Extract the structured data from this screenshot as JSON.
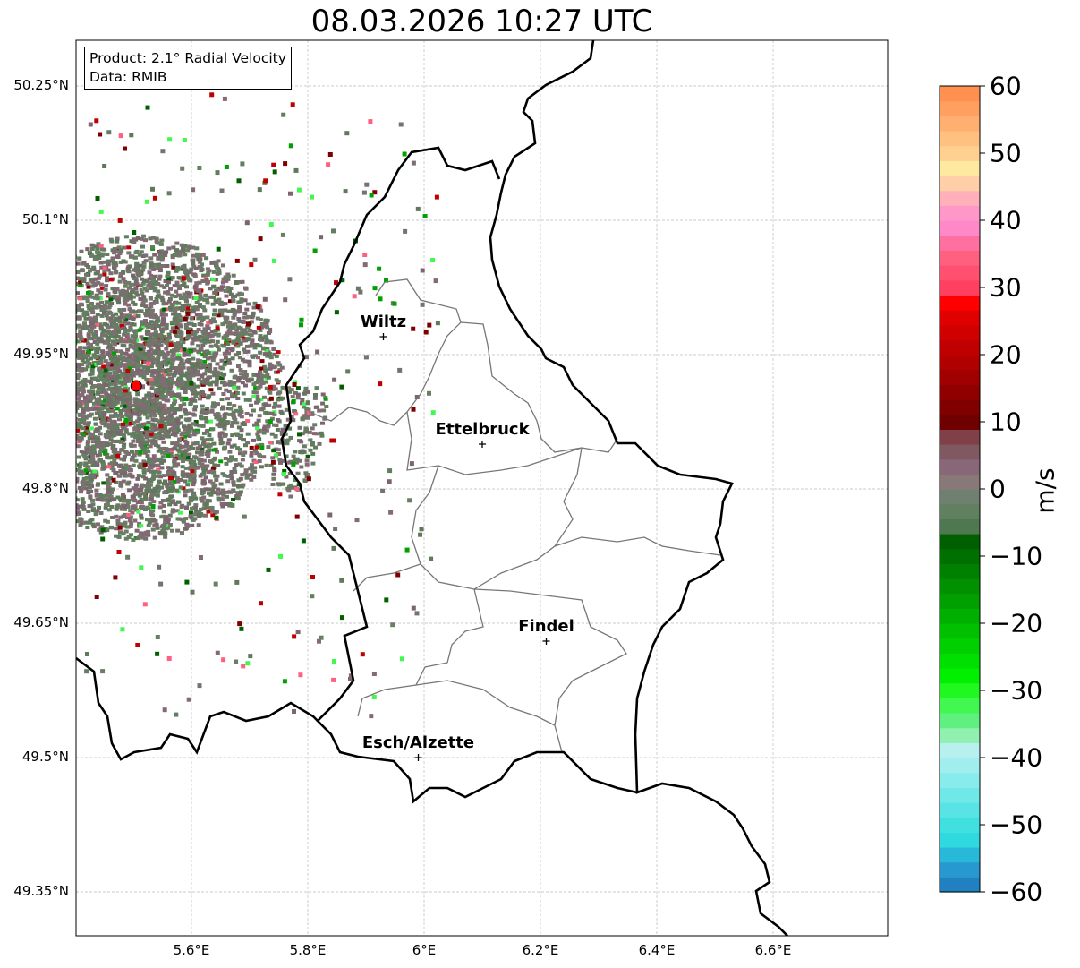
{
  "title": "08.03.2026 10:27 UTC",
  "info_box": {
    "product": "Product: 2.1° Radial Velocity",
    "data": "Data: RMIB"
  },
  "x_ticks": [
    "5.6°E",
    "5.8°E",
    "6°E",
    "6.2°E",
    "6.4°E",
    "6.6°E"
  ],
  "y_ticks": [
    "50.25°N",
    "50.1°N",
    "49.95°N",
    "49.8°N",
    "49.65°N",
    "49.5°N",
    "49.35°N"
  ],
  "cities": [
    {
      "name": "Wiltz",
      "lon": 5.93,
      "lat": 49.97
    },
    {
      "name": "Ettelbruck",
      "lon": 6.1,
      "lat": 49.85
    },
    {
      "name": "Findel",
      "lon": 6.21,
      "lat": 49.63
    },
    {
      "name": "Esch/Alzette",
      "lon": 5.99,
      "lat": 49.5
    }
  ],
  "radar_site": {
    "lon": 5.505,
    "lat": 49.915,
    "color": "#ff0000"
  },
  "colorbar": {
    "label": "m/s",
    "min": -60,
    "max": 60,
    "ticks": [
      "60",
      "50",
      "40",
      "30",
      "20",
      "10",
      "0",
      "−10",
      "−20",
      "−30",
      "−40",
      "−50",
      "−60"
    ],
    "colors": [
      "#2080c0",
      "#2898d0",
      "#28b8d8",
      "#30d8e0",
      "#40e0e0",
      "#58e4e4",
      "#70e8e8",
      "#88ecec",
      "#a0eeee",
      "#b8f0f0",
      "#90f0b0",
      "#60f080",
      "#40f850",
      "#20f820",
      "#00f000",
      "#00e000",
      "#00d000",
      "#00c000",
      "#00b000",
      "#00a000",
      "#009000",
      "#008000",
      "#007000",
      "#006000",
      "#507850",
      "#608060",
      "#708070",
      "#887878",
      "#886878",
      "#805860",
      "#804048",
      "#700000",
      "#800000",
      "#900000",
      "#a00000",
      "#b00000",
      "#c00000",
      "#d00000",
      "#e00000",
      "#ff0000",
      "#ff4060",
      "#ff5070",
      "#ff6080",
      "#ff70a0",
      "#ff88c8",
      "#ff98c8",
      "#ffb0b8",
      "#ffd0a8",
      "#ffe8a0",
      "#ffd090",
      "#ffc080",
      "#ffb070",
      "#ffa060",
      "#ff9050"
    ]
  }
}
